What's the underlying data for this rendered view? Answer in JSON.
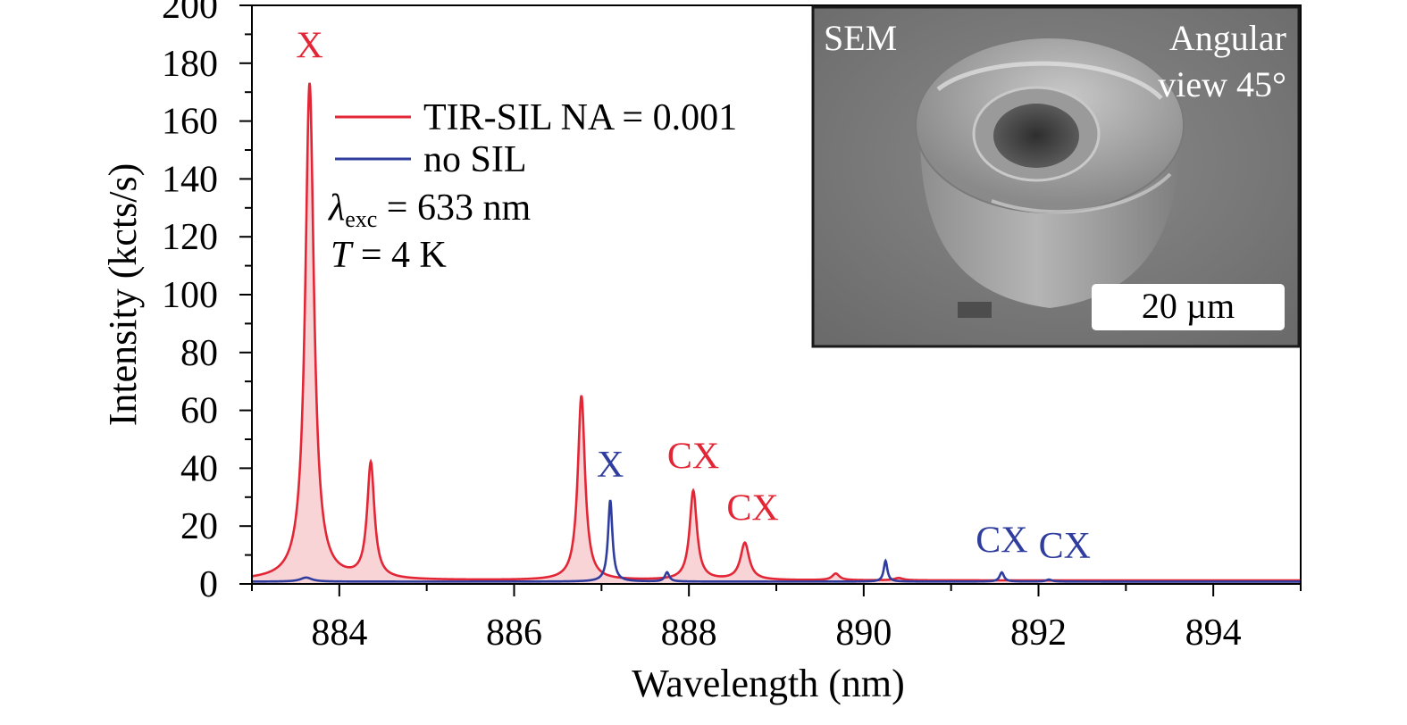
{
  "chart_data": {
    "type": "line",
    "xlabel": "Wavelength (nm)",
    "ylabel": "Intensity (kcts/s)",
    "xlim": [
      883,
      895
    ],
    "ylim": [
      0,
      200
    ],
    "x_ticks": [
      884,
      886,
      888,
      890,
      892,
      894
    ],
    "y_ticks": [
      0,
      20,
      40,
      60,
      80,
      100,
      120,
      140,
      160,
      180,
      200
    ],
    "grid": false,
    "legend_placement": "top-left",
    "series": [
      {
        "name": "TIR-SIL NA = 0.001",
        "color": "#e32636",
        "filled": true,
        "baseline": 1.2,
        "peaks": [
          {
            "x": 883.66,
            "y": 173,
            "w": 0.06
          },
          {
            "x": 884.36,
            "y": 41,
            "w": 0.05
          },
          {
            "x": 886.77,
            "y": 65,
            "w": 0.05
          },
          {
            "x": 888.05,
            "y": 32,
            "w": 0.05
          },
          {
            "x": 888.64,
            "y": 14,
            "w": 0.06
          },
          {
            "x": 889.68,
            "y": 3.5,
            "w": 0.05
          },
          {
            "x": 890.4,
            "y": 2,
            "w": 0.06
          }
        ]
      },
      {
        "name": "no SIL",
        "color": "#2e3d9e",
        "filled": false,
        "baseline": 0.8,
        "peaks": [
          {
            "x": 883.62,
            "y": 2.2,
            "w": 0.08
          },
          {
            "x": 887.1,
            "y": 29,
            "w": 0.03
          },
          {
            "x": 887.75,
            "y": 4,
            "w": 0.03
          },
          {
            "x": 890.25,
            "y": 8,
            "w": 0.025
          },
          {
            "x": 891.58,
            "y": 4,
            "w": 0.03
          },
          {
            "x": 892.12,
            "y": 1.5,
            "w": 0.04
          }
        ]
      }
    ],
    "annotations": [
      {
        "text": "X",
        "x": 883.66,
        "y": 182,
        "color": "#e32636"
      },
      {
        "text": "X",
        "x": 887.1,
        "y": 37,
        "color": "#2e3d9e"
      },
      {
        "text": "CX",
        "x": 888.05,
        "y": 40,
        "color": "#e32636"
      },
      {
        "text": "CX",
        "x": 888.73,
        "y": 22,
        "color": "#e32636"
      },
      {
        "text": "CX",
        "x": 891.58,
        "y": 11,
        "color": "#2e3d9e"
      },
      {
        "text": "CX",
        "x": 892.3,
        "y": 9,
        "color": "#2e3d9e"
      }
    ],
    "conditions": {
      "lambda_symbol": "λ",
      "lambda_sub": "exc",
      "lambda_rest": " = 633 nm",
      "temp_symbol": "T",
      "temp_rest": " = 4 K"
    },
    "inset": {
      "label_left": "SEM",
      "label_right_line1": "Angular",
      "label_right_line2": "view 45°",
      "scale_bar": "20 µm"
    }
  }
}
